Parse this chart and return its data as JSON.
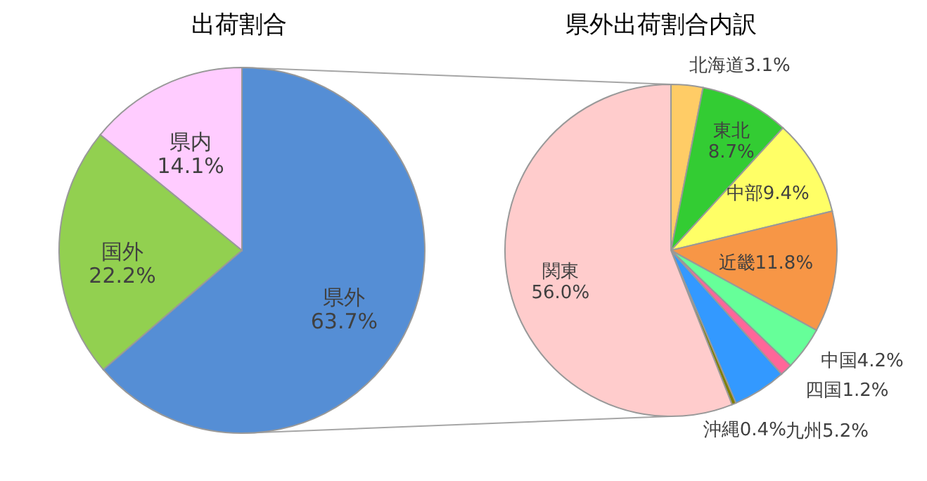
{
  "chart_data": [
    {
      "type": "pie",
      "title": "出荷割合",
      "categories": [
        "県外",
        "国外",
        "県内"
      ],
      "values": [
        63.7,
        22.2,
        14.1
      ],
      "colors": [
        "#558ed5",
        "#92d050",
        "#ffccff"
      ],
      "value_labels": [
        "63.7%",
        "22.2%",
        "14.1%"
      ]
    },
    {
      "type": "pie",
      "title": "県外出荷割合内訳",
      "categories": [
        "北海道",
        "東北",
        "中部",
        "近畿",
        "中国",
        "四国",
        "九州",
        "沖縄",
        "関東"
      ],
      "values": [
        3.1,
        8.7,
        9.4,
        11.8,
        4.2,
        1.2,
        5.2,
        0.4,
        56.0
      ],
      "colors": [
        "#ffcc66",
        "#33cc33",
        "#ffff66",
        "#f79646",
        "#66ff99",
        "#ff6699",
        "#3399ff",
        "#808000",
        "#ffcccc"
      ],
      "value_labels": [
        "3.1%",
        "8.7%",
        "9.4%",
        "11.8%",
        "4.2%",
        "1.2%",
        "5.2%",
        "0.4%",
        "56.0%"
      ]
    }
  ]
}
